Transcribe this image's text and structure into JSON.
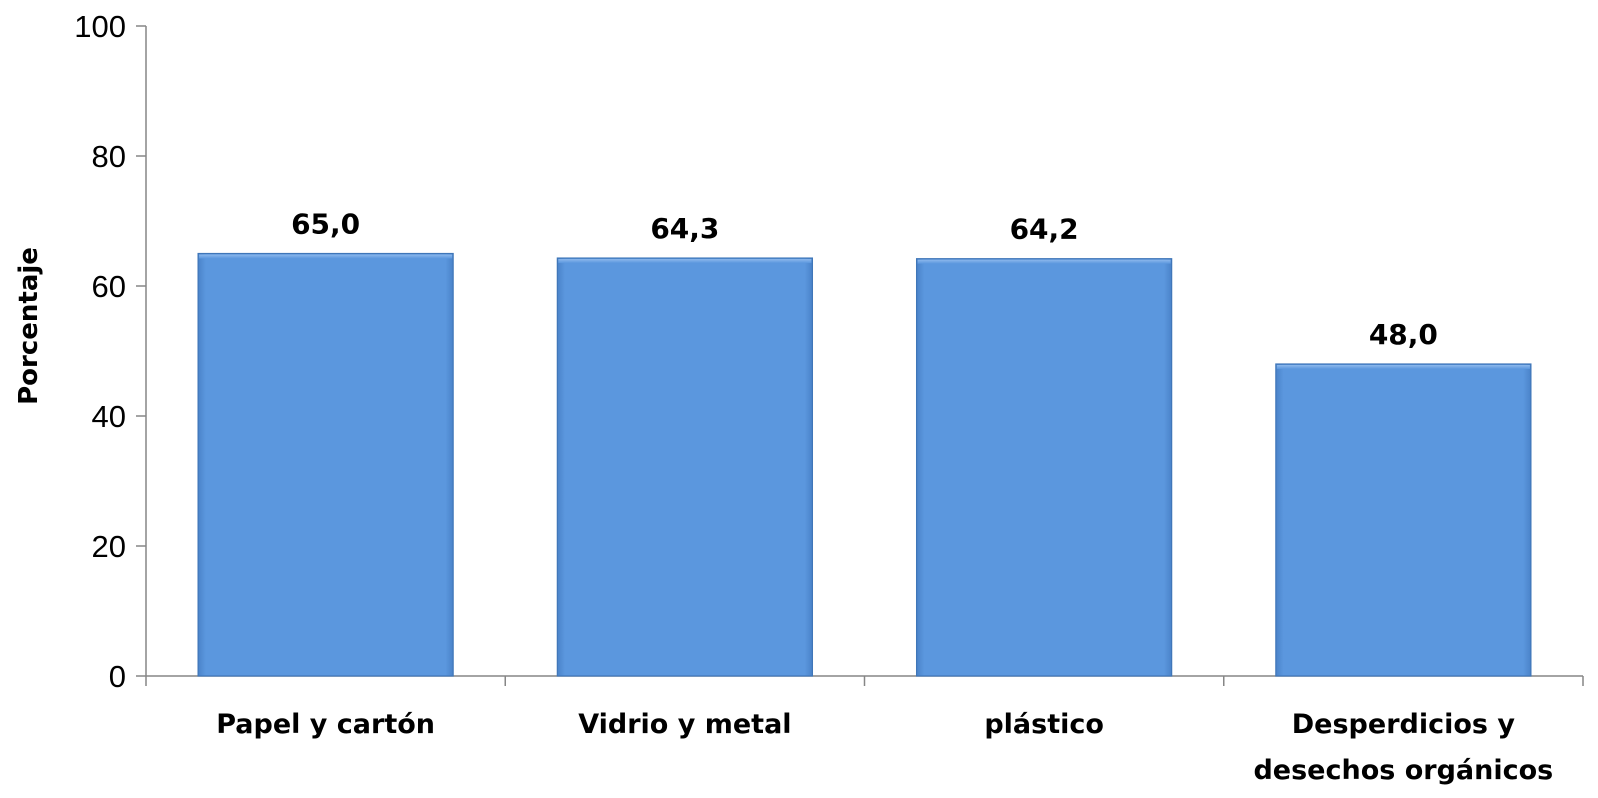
{
  "chart_data": {
    "type": "bar",
    "categories": [
      "Papel y cartón",
      "Vidrio y metal",
      "plástico",
      "Desperdicios y desechos orgánicos"
    ],
    "category_label_lines": [
      [
        "Papel y cartón"
      ],
      [
        "Vidrio y metal"
      ],
      [
        "plástico"
      ],
      [
        "Desperdicios y",
        "desechos orgánicos"
      ]
    ],
    "values": [
      65.0,
      64.3,
      64.2,
      48.0
    ],
    "data_labels": [
      "65,0",
      "64,3",
      "64,2",
      "48,0"
    ],
    "title": "",
    "xlabel": "",
    "ylabel": "Porcentaje",
    "ylim": [
      0,
      100
    ],
    "yticks": [
      0,
      20,
      40,
      60,
      80,
      100
    ],
    "grid": false,
    "legend": "none",
    "bar_color": "#5b97de",
    "bar_edge_color": "#3f76b8"
  }
}
